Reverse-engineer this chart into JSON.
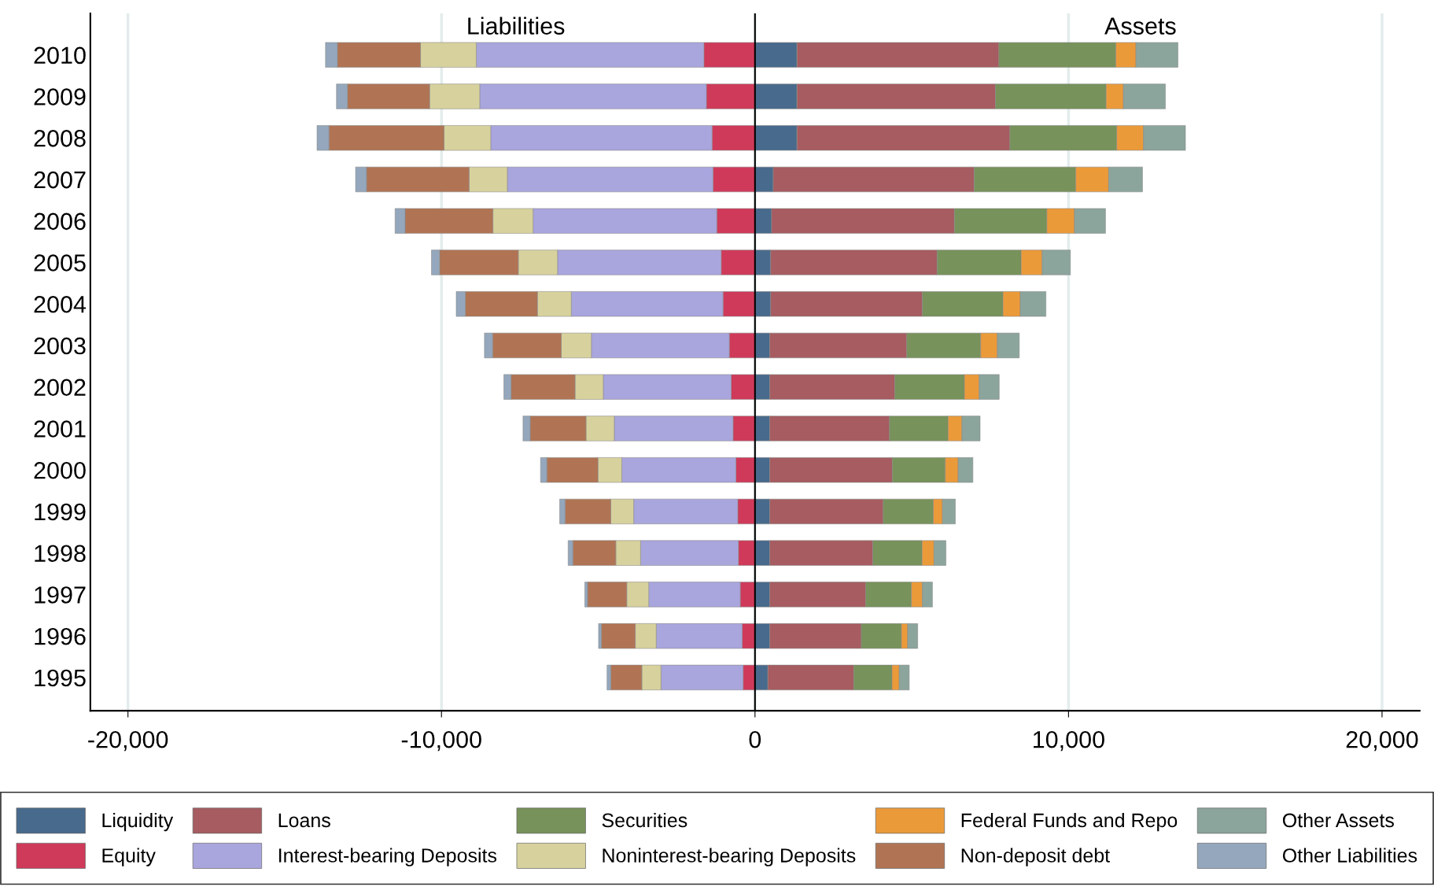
{
  "chart_data": {
    "type": "bar",
    "orientation": "horizontal",
    "stacked": true,
    "categories": [
      "2010",
      "2009",
      "2008",
      "2007",
      "2006",
      "2005",
      "2004",
      "2003",
      "2002",
      "2001",
      "2000",
      "1999",
      "1998",
      "1997",
      "1996",
      "1995"
    ],
    "series": [
      {
        "name": "Liquidity",
        "color": "#486a8c",
        "values": [
          1340,
          1340,
          1340,
          580,
          530,
          500,
          500,
          470,
          470,
          470,
          470,
          470,
          470,
          470,
          470,
          410
        ]
      },
      {
        "name": "Loans",
        "color": "#a65c60",
        "values": [
          6440,
          6330,
          6790,
          6410,
          5830,
          5310,
          4840,
          4370,
          3990,
          3820,
          3910,
          3620,
          3290,
          3060,
          2920,
          2740
        ]
      },
      {
        "name": "Securities",
        "color": "#77925a",
        "values": [
          3730,
          3530,
          3410,
          3240,
          2950,
          2680,
          2570,
          2360,
          2220,
          1870,
          1690,
          1600,
          1570,
          1460,
          1280,
          1220
        ]
      },
      {
        "name": "Federal Funds and Repo",
        "color": "#eb9a3a",
        "values": [
          640,
          550,
          850,
          1050,
          880,
          670,
          550,
          530,
          470,
          440,
          410,
          290,
          380,
          350,
          200,
          230
        ]
      },
      {
        "name": "Other Assets",
        "color": "#8ba59c",
        "values": [
          1340,
          1340,
          1340,
          1080,
          990,
          900,
          820,
          700,
          640,
          580,
          470,
          410,
          380,
          320,
          320,
          320
        ]
      },
      {
        "name": "Equity",
        "color": "#cf3a5a",
        "values": [
          -1630,
          -1550,
          -1370,
          -1340,
          -1220,
          -1080,
          -1020,
          -820,
          -760,
          -700,
          -610,
          -550,
          -530,
          -470,
          -410,
          -380
        ]
      },
      {
        "name": "Interest-bearing Deposits",
        "color": "#a9a5dd",
        "values": [
          -7260,
          -7230,
          -7060,
          -6560,
          -5860,
          -5220,
          -4840,
          -4400,
          -4080,
          -3790,
          -3640,
          -3320,
          -3120,
          -2920,
          -2740,
          -2620
        ]
      },
      {
        "name": "Noninterest-bearing Deposits",
        "color": "#d7d19d",
        "values": [
          -1780,
          -1600,
          -1490,
          -1220,
          -1280,
          -1250,
          -1080,
          -960,
          -900,
          -900,
          -760,
          -730,
          -790,
          -700,
          -670,
          -610
        ]
      },
      {
        "name": "Non-deposit debt",
        "color": "#b07454",
        "values": [
          -2650,
          -2620,
          -3670,
          -3270,
          -2800,
          -2510,
          -2300,
          -2190,
          -2040,
          -1780,
          -1630,
          -1460,
          -1370,
          -1250,
          -1080,
          -990
        ]
      },
      {
        "name": "Other Liabilities",
        "color": "#94a7bc",
        "values": [
          -380,
          -350,
          -380,
          -350,
          -320,
          -260,
          -290,
          -260,
          -230,
          -230,
          -200,
          -170,
          -150,
          -90,
          -90,
          -120
        ]
      }
    ],
    "xlim": [
      -21200,
      21200
    ],
    "xticks": [
      {
        "value": -20000,
        "label": "-20,000"
      },
      {
        "value": -10000,
        "label": "-10,000"
      },
      0,
      {
        "value": 10000,
        "label": "10,000"
      },
      {
        "value": 20000,
        "label": "20,000"
      }
    ],
    "grid": "x",
    "ref_lines": [
      {
        "axis": "x",
        "value": 0,
        "color": "#000000"
      }
    ],
    "annotations": [
      "Liabilities",
      "Assets"
    ],
    "legend": "bottom"
  }
}
